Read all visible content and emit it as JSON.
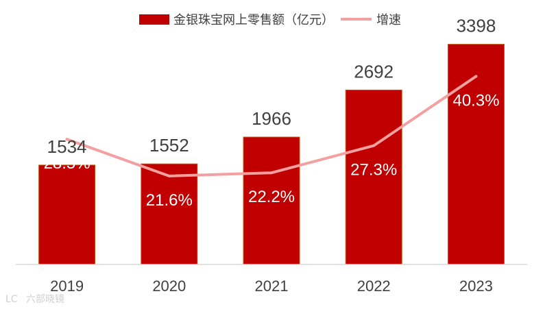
{
  "chart_data": {
    "type": "bar",
    "categories": [
      "2019",
      "2020",
      "2021",
      "2022",
      "2023"
    ],
    "series": [
      {
        "name": "金银珠宝网上零售额（亿元）",
        "kind": "bar",
        "values": [
          1534,
          1552,
          1966,
          2692,
          3398
        ],
        "labels": [
          "1534",
          "1552",
          "1966",
          "2692",
          "3398"
        ],
        "color": "#c00000"
      },
      {
        "name": "增速",
        "kind": "line",
        "values": [
          28.5,
          21.6,
          22.2,
          27.3,
          40.3
        ],
        "labels": [
          "28.5%",
          "21.6%",
          "22.2%",
          "27.3%",
          "40.3%"
        ],
        "color": "#f4a0a0"
      }
    ],
    "ylim": [
      0,
      3700
    ],
    "y2lim": [
      5,
      50
    ],
    "grid": false,
    "legend_position": "top"
  },
  "watermark": "六部晓镜"
}
